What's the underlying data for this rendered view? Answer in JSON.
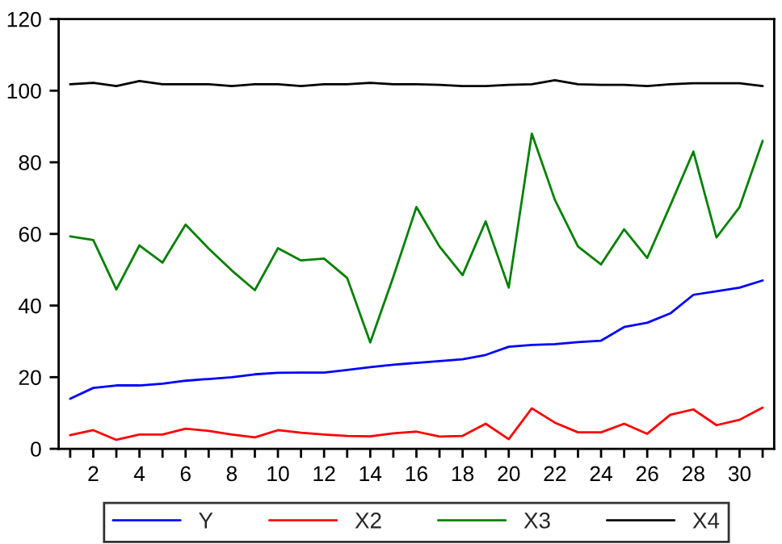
{
  "chart_data": {
    "type": "line",
    "x": [
      1,
      2,
      3,
      4,
      5,
      6,
      7,
      8,
      9,
      10,
      11,
      12,
      13,
      14,
      15,
      16,
      17,
      18,
      19,
      20,
      21,
      22,
      23,
      24,
      25,
      26,
      27,
      28,
      29,
      30,
      31
    ],
    "series": [
      {
        "name": "Y",
        "color": "#0000ff",
        "values": [
          14,
          17,
          17.7,
          17.7,
          18.2,
          19,
          19.5,
          20,
          20.8,
          21.2,
          21.3,
          21.3,
          22,
          22.8,
          23.5,
          24,
          24.5,
          25,
          26.2,
          28.5,
          29,
          29.2,
          29.8,
          30.2,
          34,
          35.2,
          37.8,
          43,
          44,
          45,
          47
        ]
      },
      {
        "name": "X2",
        "color": "#ff0000",
        "values": [
          3.8,
          5.2,
          2.5,
          4,
          4,
          5.6,
          5,
          4,
          3.2,
          5.2,
          4.5,
          4,
          3.6,
          3.5,
          4.3,
          4.8,
          3.4,
          3.6,
          7,
          2.7,
          11.3,
          7.3,
          4.6,
          4.6,
          7,
          4.2,
          9.5,
          11,
          6.6,
          8.1,
          11.5
        ]
      },
      {
        "name": "X3",
        "color": "#008000",
        "values": [
          59.3,
          58.3,
          44.5,
          56.8,
          52,
          62.6,
          55.9,
          49.8,
          44.3,
          56,
          52.6,
          53.1,
          47.7,
          29.7,
          48,
          67.5,
          56.5,
          48.5,
          63.5,
          45,
          88,
          69.5,
          56.5,
          51.5,
          61.3,
          53.3,
          68,
          83,
          59,
          67.5,
          86
        ]
      },
      {
        "name": "X4",
        "color": "#000000",
        "values": [
          101.8,
          102.2,
          101.3,
          102.7,
          101.8,
          101.8,
          101.8,
          101.3,
          101.8,
          101.8,
          101.3,
          101.8,
          101.8,
          102.2,
          101.8,
          101.8,
          101.6,
          101.3,
          101.3,
          101.6,
          101.8,
          102.9,
          101.8,
          101.6,
          101.6,
          101.3,
          101.8,
          102.1,
          102.1,
          102.1,
          101.3
        ]
      }
    ],
    "xlim": [
      0.5,
      31.5
    ],
    "xticks": [
      {
        "value": 1,
        "label": null
      },
      2,
      {
        "value": 3,
        "label": null
      },
      4,
      {
        "value": 5,
        "label": null
      },
      6,
      {
        "value": 7,
        "label": null
      },
      8,
      {
        "value": 9,
        "label": null
      },
      10,
      {
        "value": 11,
        "label": null
      },
      12,
      {
        "value": 13,
        "label": null
      },
      14,
      {
        "value": 15,
        "label": null
      },
      16,
      {
        "value": 17,
        "label": null
      },
      18,
      {
        "value": 19,
        "label": null
      },
      20,
      {
        "value": 21,
        "label": null
      },
      22,
      {
        "value": 23,
        "label": null
      },
      24,
      {
        "value": 25,
        "label": null
      },
      26,
      {
        "value": 27,
        "label": null
      },
      28,
      {
        "value": 29,
        "label": null
      },
      30,
      {
        "value": 31,
        "label": null
      }
    ],
    "ylim": [
      0,
      120
    ],
    "yticks": [
      0,
      20,
      40,
      60,
      80,
      100,
      120
    ],
    "grid": false,
    "legend": "bottom",
    "line_style": "solid"
  }
}
